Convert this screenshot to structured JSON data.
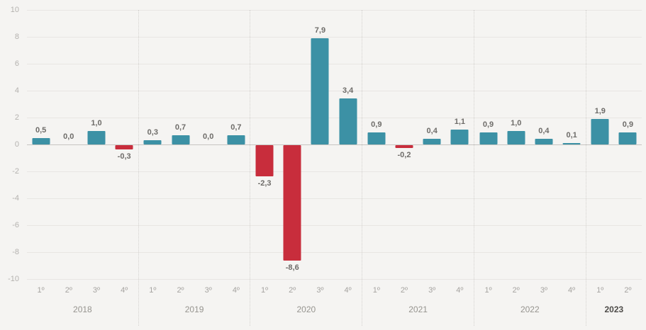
{
  "chart_data": {
    "type": "bar",
    "title": "",
    "xlabel": "",
    "ylabel": "",
    "ylim": [
      -10,
      10
    ],
    "yticks": [
      10,
      8,
      6,
      4,
      2,
      0,
      -2,
      -4,
      -6,
      -8,
      -10
    ],
    "grid": true,
    "decimal_separator": "comma",
    "colors": {
      "positive": "#3c91a5",
      "negative": "#c82d3c",
      "background": "#f5f4f2",
      "gridline": "#e8e6e3",
      "zero_line": "#c7c5c2"
    },
    "groups": [
      {
        "year": "2018",
        "bold": false,
        "quarters": [
          "1º",
          "2º",
          "3º",
          "4º"
        ],
        "values": [
          0.5,
          0.0,
          1.0,
          -0.3
        ],
        "labels": [
          "0,5",
          "0,0",
          "1,0",
          "-0,3"
        ]
      },
      {
        "year": "2019",
        "bold": false,
        "quarters": [
          "1º",
          "2º",
          "3º",
          "4º"
        ],
        "values": [
          0.3,
          0.7,
          0.0,
          0.7
        ],
        "labels": [
          "0,3",
          "0,7",
          "0,0",
          "0,7"
        ]
      },
      {
        "year": "2020",
        "bold": false,
        "quarters": [
          "1º",
          "2º",
          "3º",
          "4º"
        ],
        "values": [
          -2.3,
          -8.6,
          7.9,
          3.4
        ],
        "labels": [
          "-2,3",
          "-8,6",
          "7,9",
          "3,4"
        ]
      },
      {
        "year": "2021",
        "bold": false,
        "quarters": [
          "1º",
          "2º",
          "3º",
          "4º"
        ],
        "values": [
          0.9,
          -0.2,
          0.4,
          1.1
        ],
        "labels": [
          "0,9",
          "-0,2",
          "0,4",
          "1,1"
        ]
      },
      {
        "year": "2022",
        "bold": false,
        "quarters": [
          "1º",
          "2º",
          "3º",
          "4º"
        ],
        "values": [
          0.9,
          1.0,
          0.4,
          0.1
        ],
        "labels": [
          "0,9",
          "1,0",
          "0,4",
          "0,1"
        ]
      },
      {
        "year": "2023",
        "bold": true,
        "quarters": [
          "1º",
          "2º"
        ],
        "values": [
          1.9,
          0.9
        ],
        "labels": [
          "1,9",
          "0,9"
        ]
      }
    ]
  }
}
